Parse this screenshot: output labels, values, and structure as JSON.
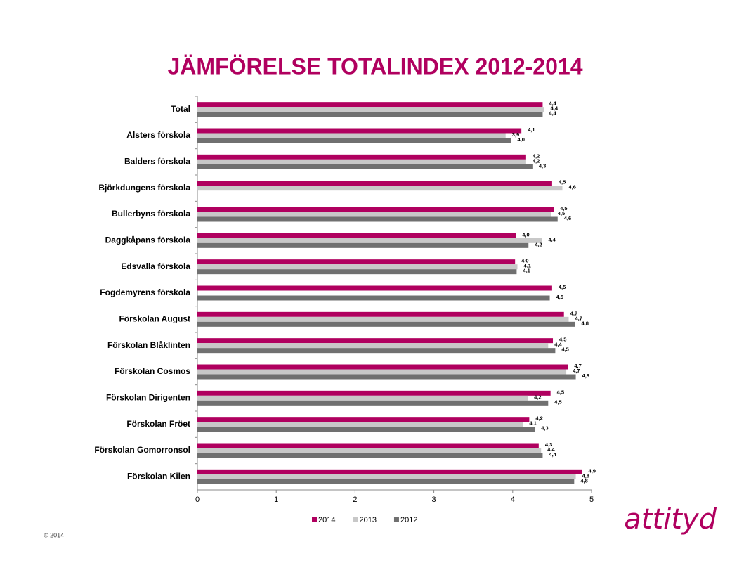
{
  "chart_data": {
    "type": "bar",
    "orientation": "horizontal",
    "title": "JÄMFÖRELSE TOTALINDEX 2012-2014",
    "categories": [
      "Total",
      "Alsters förskola",
      "Balders förskola",
      "Björkdungens förskola",
      "Bullerbyns förskola",
      "Daggkåpans förskola",
      "Edsvalla förskola",
      "Fogdemyrens förskola",
      "Förskolan August",
      "Förskolan Blåklinten",
      "Förskolan Cosmos",
      "Förskolan Dirigenten",
      "Förskolan Fröet",
      "Förskolan Gomorronsol",
      "Förskolan Kilen"
    ],
    "series": [
      {
        "name": "2014",
        "color": "#b0005f",
        "values": [
          4.38,
          4.11,
          4.17,
          4.5,
          4.52,
          4.04,
          4.03,
          4.5,
          4.65,
          4.51,
          4.7,
          4.48,
          4.21,
          4.33,
          4.88
        ],
        "value_labels": [
          "4,4",
          "4,1",
          "4,2",
          "4,5",
          "4,5",
          "4,0",
          "4,0",
          "4,5",
          "4,7",
          "4,5",
          "4,7",
          "4,5",
          "4,2",
          "4,3",
          "4,9"
        ]
      },
      {
        "name": "2013",
        "color": "#c8c8c8",
        "values": [
          4.4,
          3.91,
          4.17,
          4.63,
          4.49,
          4.37,
          4.06,
          null,
          4.71,
          4.45,
          4.68,
          4.19,
          4.13,
          4.36,
          4.8
        ],
        "value_labels": [
          "4,4",
          "3,9",
          "4,2",
          "4,6",
          "4,5",
          "4,4",
          "4,1",
          null,
          "4,7",
          "4,4",
          "4,7",
          "4,2",
          "4,1",
          "4,4",
          "4,8"
        ]
      },
      {
        "name": "2012",
        "color": "#707070",
        "values": [
          4.38,
          3.98,
          4.25,
          null,
          4.57,
          4.2,
          4.05,
          4.47,
          4.79,
          4.54,
          4.8,
          4.45,
          4.28,
          4.38,
          4.78
        ],
        "value_labels": [
          "4,4",
          "4,0",
          "4,3",
          null,
          "4,6",
          "4,2",
          "4,1",
          "4,5",
          "4,8",
          "4,5",
          "4,8",
          "4,5",
          "4,3",
          "4,4",
          "4,8"
        ]
      }
    ],
    "xlim": [
      0,
      5
    ],
    "xticks": [
      0,
      1,
      2,
      3,
      4,
      5
    ],
    "legend": "bottom"
  },
  "footer": {
    "copyright": "© 2014",
    "logo": "attityd"
  }
}
